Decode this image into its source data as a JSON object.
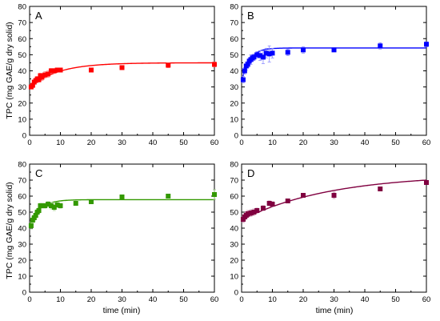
{
  "figure": {
    "ylabel": "TPC (mg GAE/g dry solid)",
    "xlabel": "time (min)"
  },
  "chart_data": [
    {
      "type": "scatter",
      "panel": "A",
      "color": "#ff0000",
      "xlim": [
        0,
        60
      ],
      "ylim": [
        0,
        80
      ],
      "xticks": [
        0,
        10,
        20,
        30,
        40,
        50,
        60
      ],
      "yticks": [
        0,
        10,
        20,
        30,
        40,
        50,
        60,
        70,
        80
      ],
      "series": [
        {
          "marker": "square",
          "x": [
            0.5,
            1,
            1.5,
            2,
            2.5,
            3,
            3.5,
            4,
            5,
            6,
            7,
            8,
            9,
            10,
            20,
            30,
            45,
            60
          ],
          "y": [
            30,
            31,
            33,
            34,
            35,
            34.5,
            37,
            36,
            37.5,
            38,
            40,
            40,
            40.5,
            40.5,
            40.5,
            42,
            43.5,
            44
          ],
          "error": [
            1,
            1,
            1,
            1,
            1.5,
            1.5,
            1.5,
            2,
            2,
            2,
            1.5,
            1.5,
            1,
            1,
            1,
            1,
            1.5,
            1.5
          ],
          "fit": {
            "model": "saturating",
            "y0": 29.5,
            "ymax": 45,
            "k": 0.11
          }
        }
      ]
    },
    {
      "type": "scatter",
      "panel": "B",
      "color": "#0000ff",
      "xlim": [
        0,
        60
      ],
      "ylim": [
        0,
        80
      ],
      "xticks": [
        0,
        10,
        20,
        30,
        40,
        50,
        60
      ],
      "yticks": [
        0,
        10,
        20,
        30,
        40,
        50,
        60,
        70,
        80
      ],
      "series": [
        {
          "marker": "square",
          "x": [
            0.5,
            1,
            1.5,
            2,
            2.5,
            3,
            3.5,
            4,
            5,
            6,
            7,
            8,
            9,
            10,
            15,
            20,
            30,
            45,
            60
          ],
          "y": [
            34.5,
            40,
            43,
            44,
            46,
            47,
            48,
            48.5,
            50,
            49.5,
            48.5,
            51,
            50.5,
            51,
            51.5,
            53,
            53,
            55.5,
            56.5
          ],
          "error": [
            2,
            2,
            2.5,
            2,
            2,
            3,
            2,
            2,
            2,
            3,
            4,
            3,
            5,
            3,
            2,
            2,
            1,
            2,
            1.5
          ],
          "fit": {
            "model": "saturating",
            "y0": 33.5,
            "ymax": 54.2,
            "k": 0.4
          }
        }
      ]
    },
    {
      "type": "scatter",
      "panel": "C",
      "color": "#339900",
      "xlim": [
        0,
        60
      ],
      "ylim": [
        0,
        80
      ],
      "xticks": [
        0,
        10,
        20,
        30,
        40,
        50,
        60
      ],
      "yticks": [
        0,
        10,
        20,
        30,
        40,
        50,
        60,
        70,
        80
      ],
      "series": [
        {
          "marker": "square",
          "x": [
            0.5,
            1,
            1.5,
            2,
            2.5,
            3,
            3.5,
            4,
            5,
            6,
            7,
            8,
            9,
            10,
            15,
            20,
            30,
            45,
            60
          ],
          "y": [
            41.5,
            45,
            46.5,
            48,
            50,
            51,
            54,
            54,
            54,
            55,
            54,
            53,
            54.5,
            54,
            55.5,
            56.5,
            59.5,
            60,
            61
          ],
          "error": [
            2,
            2,
            2,
            2,
            1.5,
            1.5,
            1.5,
            1.5,
            1.5,
            1.5,
            2,
            2,
            1.5,
            1.5,
            1,
            1,
            1,
            1,
            3
          ],
          "fit": {
            "model": "saturating",
            "y0": 42,
            "ymax": 57.8,
            "k": 0.3
          }
        }
      ]
    },
    {
      "type": "scatter",
      "panel": "D",
      "color": "#800040",
      "xlim": [
        0,
        60
      ],
      "ylim": [
        0,
        80
      ],
      "xticks": [
        0,
        10,
        20,
        30,
        40,
        50,
        60
      ],
      "yticks": [
        0,
        10,
        20,
        30,
        40,
        50,
        60,
        70,
        80
      ],
      "series": [
        {
          "marker": "square",
          "x": [
            0.5,
            1,
            1.5,
            2,
            3,
            4,
            5,
            7,
            9,
            10,
            15,
            20,
            30,
            45,
            60
          ],
          "y": [
            45.5,
            47,
            48,
            49,
            49.5,
            50,
            51,
            52.5,
            55.5,
            55,
            57,
            60.5,
            60.5,
            64.5,
            68.5
          ],
          "error": [
            2,
            2,
            2,
            2,
            2,
            2,
            1.5,
            1.5,
            1.5,
            1.5,
            1,
            1,
            2,
            1,
            1
          ],
          "fit": {
            "model": "saturating",
            "y0": 45,
            "ymax": 73.5,
            "k": 0.035
          }
        }
      ]
    }
  ]
}
